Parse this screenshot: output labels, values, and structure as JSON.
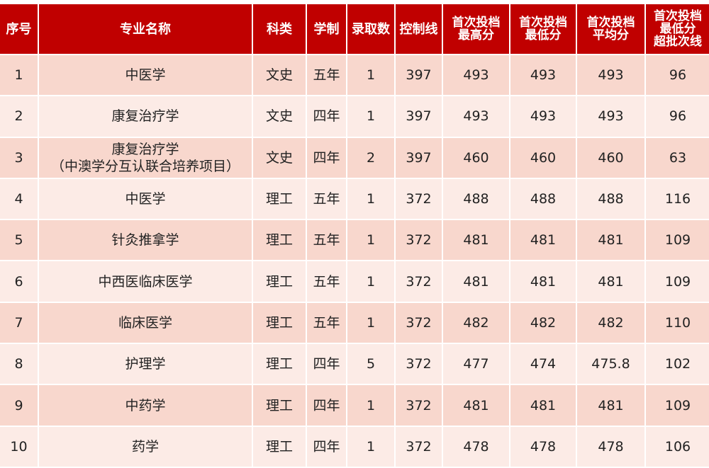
{
  "header": [
    "序号",
    "专业名称",
    "科类",
    "学制",
    "录取数",
    "控制线",
    "首次投档\n最高分",
    "首次投档\n最低分",
    "首次投档\n平均分",
    "首次投档\n最低分\n超批次线"
  ],
  "colors": {
    "header_bg": "#c00000",
    "row_odd": "#f8d7cd",
    "row_even": "#fcebe6"
  },
  "rows": [
    [
      "1",
      "中医学",
      "文史",
      "五年",
      "1",
      "397",
      "493",
      "493",
      "493",
      "96"
    ],
    [
      "2",
      "康复治疗学",
      "文史",
      "四年",
      "1",
      "397",
      "493",
      "493",
      "493",
      "96"
    ],
    [
      "3",
      "康复治疗学\n（中澳学分互认联合培养项目）",
      "文史",
      "四年",
      "2",
      "397",
      "460",
      "460",
      "460",
      "63"
    ],
    [
      "4",
      "中医学",
      "理工",
      "五年",
      "1",
      "372",
      "488",
      "488",
      "488",
      "116"
    ],
    [
      "5",
      "针灸推拿学",
      "理工",
      "五年",
      "1",
      "372",
      "481",
      "481",
      "481",
      "109"
    ],
    [
      "6",
      "中西医临床医学",
      "理工",
      "五年",
      "1",
      "372",
      "481",
      "481",
      "481",
      "109"
    ],
    [
      "7",
      "临床医学",
      "理工",
      "五年",
      "1",
      "372",
      "482",
      "482",
      "482",
      "110"
    ],
    [
      "8",
      "护理学",
      "理工",
      "四年",
      "5",
      "372",
      "477",
      "474",
      "475.8",
      "102"
    ],
    [
      "9",
      "中药学",
      "理工",
      "四年",
      "1",
      "372",
      "481",
      "481",
      "481",
      "109"
    ],
    [
      "10",
      "药学",
      "理工",
      "四年",
      "1",
      "372",
      "478",
      "478",
      "478",
      "106"
    ]
  ]
}
